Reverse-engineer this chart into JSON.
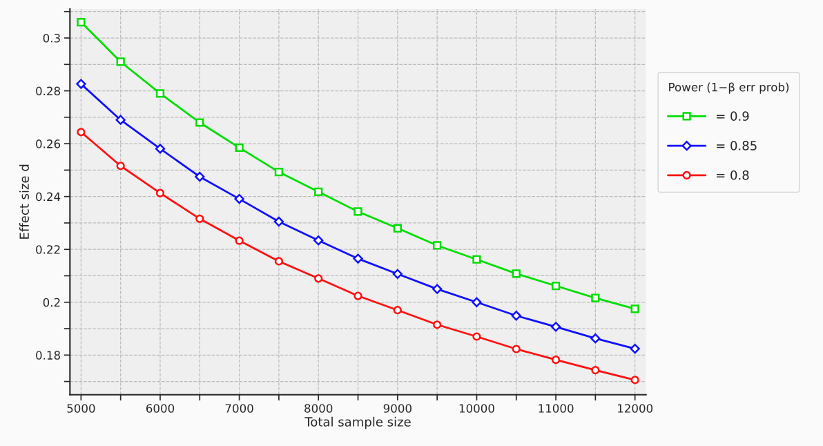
{
  "chart_data": {
    "type": "line",
    "xlabel": "Total sample size",
    "ylabel": "Effect size d",
    "legend_title": "Power (1−β err prob)",
    "x": [
      5000,
      5500,
      6000,
      6500,
      7000,
      7500,
      8000,
      8500,
      9000,
      9500,
      10000,
      10500,
      11000,
      11500,
      12000
    ],
    "series": [
      {
        "name": "= 0.9",
        "color": "#00dd00",
        "marker": "square",
        "values": [
          0.306,
          0.291,
          0.279,
          0.268,
          0.2585,
          0.2493,
          0.2418,
          0.2343,
          0.228,
          0.2215,
          0.2162,
          0.2108,
          0.2062,
          0.2016,
          0.1975
        ]
      },
      {
        "name": "= 0.85",
        "color": "#1010ff",
        "marker": "diamond",
        "values": [
          0.2826,
          0.269,
          0.2581,
          0.2475,
          0.2391,
          0.2305,
          0.2234,
          0.2165,
          0.2107,
          0.205,
          0.2,
          0.1949,
          0.1907,
          0.1863,
          0.1824
        ]
      },
      {
        "name": "= 0.8",
        "color": "#ff1010",
        "marker": "circle",
        "values": [
          0.2644,
          0.2516,
          0.2413,
          0.2316,
          0.2233,
          0.2155,
          0.209,
          0.2024,
          0.197,
          0.1915,
          0.187,
          0.1823,
          0.1782,
          0.1743,
          0.1706
        ]
      }
    ],
    "xlim": [
      4860,
      12140
    ],
    "ylim": [
      0.165,
      0.311
    ],
    "xticks": [
      5000,
      {
        "value": 5500,
        "label": null
      },
      6000,
      {
        "value": 6500,
        "label": null
      },
      7000,
      {
        "value": 7500,
        "label": null
      },
      8000,
      {
        "value": 8500,
        "label": null
      },
      9000,
      {
        "value": 9500,
        "label": null
      },
      10000,
      {
        "value": 10500,
        "label": null
      },
      11000,
      {
        "value": 11500,
        "label": null
      },
      12000
    ],
    "yticks": [
      {
        "value": 0.17,
        "label": null
      },
      0.18,
      {
        "value": 0.19,
        "label": null
      },
      0.2,
      {
        "value": 0.21,
        "label": null
      },
      0.22,
      {
        "value": 0.23,
        "label": null
      },
      0.24,
      {
        "value": 0.25,
        "label": null
      },
      0.26,
      {
        "value": 0.27,
        "label": null
      },
      0.28,
      {
        "value": 0.29,
        "label": null
      },
      0.3,
      {
        "value": 0.31,
        "label": null
      }
    ],
    "grid": true,
    "legend": "right",
    "line_style": "solid"
  }
}
